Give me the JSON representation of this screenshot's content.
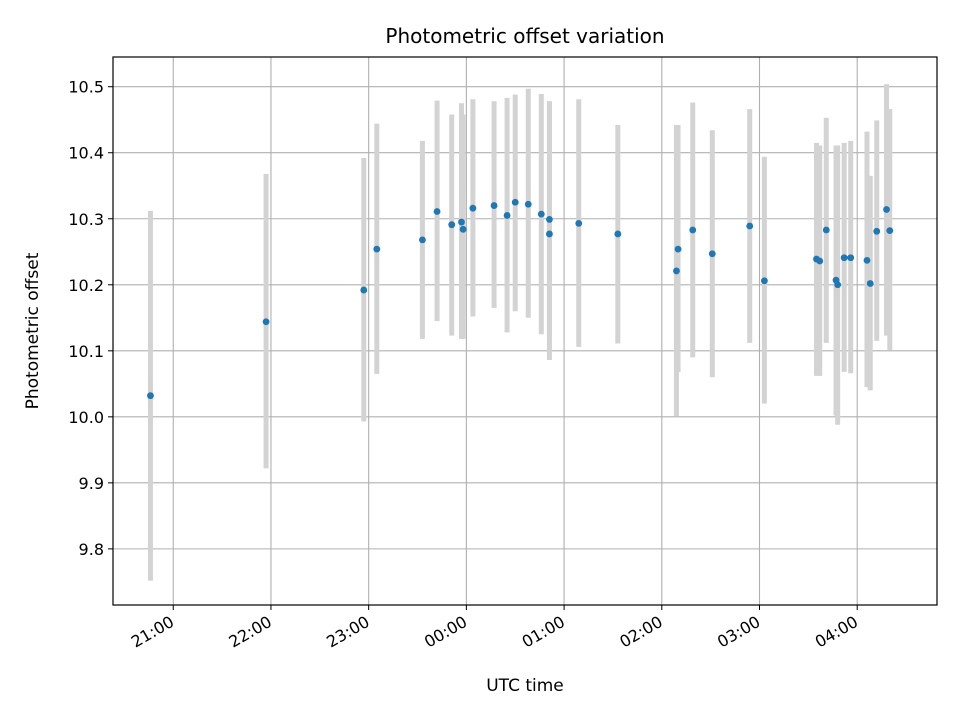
{
  "chart_data": {
    "type": "scatter",
    "title": "Photometric offset variation",
    "xlabel": "UTC time",
    "ylabel": "Photometric offset",
    "grid": true,
    "xlim": [
      "20:23",
      "04:49"
    ],
    "ylim": [
      9.715,
      10.545
    ],
    "x_ticks": [
      "21:00",
      "22:00",
      "23:00",
      "00:00",
      "01:00",
      "02:00",
      "03:00",
      "04:00"
    ],
    "y_ticks": [
      "9.8",
      "9.9",
      "10.0",
      "10.1",
      "10.2",
      "10.3",
      "10.4",
      "10.5"
    ],
    "point_color": "#1f77b4",
    "errorbar_color": "#d3d3d3",
    "points": [
      {
        "t": "20:46",
        "y": 10.032,
        "lo": 9.752,
        "hi": 10.312
      },
      {
        "t": "21:57",
        "y": 10.144,
        "lo": 9.922,
        "hi": 10.368
      },
      {
        "t": "22:57",
        "y": 10.192,
        "lo": 9.993,
        "hi": 10.392
      },
      {
        "t": "23:05",
        "y": 10.254,
        "lo": 10.065,
        "hi": 10.444
      },
      {
        "t": "23:33",
        "y": 10.268,
        "lo": 10.118,
        "hi": 10.418
      },
      {
        "t": "23:42",
        "y": 10.311,
        "lo": 10.145,
        "hi": 10.479
      },
      {
        "t": "23:51",
        "y": 10.291,
        "lo": 10.123,
        "hi": 10.458
      },
      {
        "t": "23:57",
        "y": 10.295,
        "lo": 10.118,
        "hi": 10.475
      },
      {
        "t": "23:58",
        "y": 10.284,
        "lo": 10.118,
        "hi": 10.458
      },
      {
        "t": "00:04",
        "y": 10.316,
        "lo": 10.152,
        "hi": 10.481
      },
      {
        "t": "00:17",
        "y": 10.32,
        "lo": 10.165,
        "hi": 10.478
      },
      {
        "t": "00:25",
        "y": 10.305,
        "lo": 10.128,
        "hi": 10.483
      },
      {
        "t": "00:30",
        "y": 10.325,
        "lo": 10.16,
        "hi": 10.488
      },
      {
        "t": "00:38",
        "y": 10.322,
        "lo": 10.15,
        "hi": 10.497
      },
      {
        "t": "00:46",
        "y": 10.307,
        "lo": 10.125,
        "hi": 10.489
      },
      {
        "t": "00:51",
        "y": 10.277,
        "lo": 10.086,
        "hi": 10.478
      },
      {
        "t": "00:51",
        "y": 10.299,
        "lo": 10.12,
        "hi": 10.478
      },
      {
        "t": "01:09",
        "y": 10.293,
        "lo": 10.106,
        "hi": 10.481
      },
      {
        "t": "01:33",
        "y": 10.277,
        "lo": 10.111,
        "hi": 10.442
      },
      {
        "t": "02:09",
        "y": 10.221,
        "lo": 10.001,
        "hi": 10.442
      },
      {
        "t": "02:10",
        "y": 10.254,
        "lo": 10.068,
        "hi": 10.442
      },
      {
        "t": "02:19",
        "y": 10.283,
        "lo": 10.09,
        "hi": 10.476
      },
      {
        "t": "02:31",
        "y": 10.247,
        "lo": 10.06,
        "hi": 10.434
      },
      {
        "t": "02:54",
        "y": 10.289,
        "lo": 10.112,
        "hi": 10.466
      },
      {
        "t": "03:03",
        "y": 10.206,
        "lo": 10.02,
        "hi": 10.394
      },
      {
        "t": "03:35",
        "y": 10.239,
        "lo": 10.062,
        "hi": 10.415
      },
      {
        "t": "03:37",
        "y": 10.236,
        "lo": 10.062,
        "hi": 10.411
      },
      {
        "t": "03:41",
        "y": 10.283,
        "lo": 10.112,
        "hi": 10.453
      },
      {
        "t": "03:47",
        "y": 10.207,
        "lo": 10.002,
        "hi": 10.411
      },
      {
        "t": "03:48",
        "y": 10.2,
        "lo": 9.988,
        "hi": 10.411
      },
      {
        "t": "03:52",
        "y": 10.241,
        "lo": 10.068,
        "hi": 10.415
      },
      {
        "t": "03:56",
        "y": 10.241,
        "lo": 10.066,
        "hi": 10.418
      },
      {
        "t": "04:06",
        "y": 10.237,
        "lo": 10.045,
        "hi": 10.432
      },
      {
        "t": "04:08",
        "y": 10.202,
        "lo": 10.04,
        "hi": 10.365
      },
      {
        "t": "04:12",
        "y": 10.281,
        "lo": 10.115,
        "hi": 10.449
      },
      {
        "t": "04:18",
        "y": 10.314,
        "lo": 10.123,
        "hi": 10.504
      },
      {
        "t": "04:20",
        "y": 10.282,
        "lo": 10.101,
        "hi": 10.466
      }
    ]
  }
}
